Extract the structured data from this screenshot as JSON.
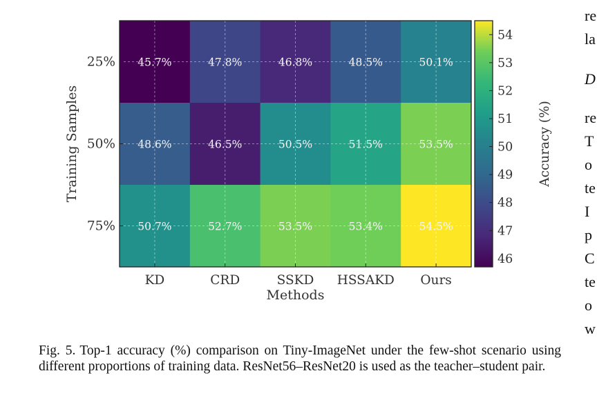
{
  "chart_data": {
    "type": "heatmap",
    "x_categories": [
      "KD",
      "CRD",
      "SSKD",
      "HSSAKD",
      "Ours"
    ],
    "y_categories": [
      "25%",
      "50%",
      "75%"
    ],
    "xlabel": "Methods",
    "ylabel": "Training Samples",
    "colorbar_label": "Accuracy (%)",
    "colorbar_ticks": [
      46,
      47,
      48,
      49,
      50,
      51,
      52,
      53,
      54
    ],
    "colorbar_range": [
      45.7,
      54.5
    ],
    "colormap": "viridis",
    "values": [
      [
        45.7,
        47.8,
        46.8,
        48.5,
        50.1
      ],
      [
        48.6,
        46.5,
        50.5,
        51.5,
        53.5
      ],
      [
        50.7,
        52.7,
        53.5,
        53.4,
        54.5
      ]
    ],
    "cell_labels": [
      [
        "45.7%",
        "47.8%",
        "46.8%",
        "48.5%",
        "50.1%"
      ],
      [
        "48.6%",
        "46.5%",
        "50.5%",
        "51.5%",
        "53.5%"
      ],
      [
        "50.7%",
        "52.7%",
        "53.5%",
        "53.4%",
        "54.5%"
      ]
    ],
    "grid": true
  },
  "caption": {
    "label": "Fig. 5.",
    "text": "Top-1 accuracy (%) comparison on Tiny-ImageNet under the few-shot scenario using different proportions of training data. ResNet56–ResNet20 is used as the teacher–student pair."
  },
  "adjacent_column_fragments": [
    "re",
    "la",
    "D",
    "re",
    "T",
    "o",
    "te",
    "I",
    "p",
    "C",
    "te",
    "o",
    "w"
  ]
}
